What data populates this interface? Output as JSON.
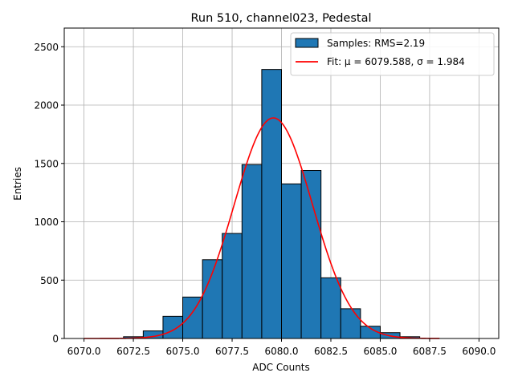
{
  "chart_data": {
    "type": "bar",
    "title": "Run 510, channel023, Pedestal",
    "xlabel": "ADC Counts",
    "ylabel": "Entries",
    "xlim": [
      6069,
      6091
    ],
    "ylim": [
      0,
      2660
    ],
    "grid": true,
    "legend_position": "top-right",
    "xticks": [
      {
        "value": 6070.0,
        "label": "6070.0"
      },
      {
        "value": 6072.5,
        "label": "6072.5"
      },
      {
        "value": 6075.0,
        "label": "6075.0"
      },
      {
        "value": 6077.5,
        "label": "6077.5"
      },
      {
        "value": 6080.0,
        "label": "6080.0"
      },
      {
        "value": 6082.5,
        "label": "6082.5"
      },
      {
        "value": 6085.0,
        "label": "6085.0"
      },
      {
        "value": 6087.5,
        "label": "6087.5"
      },
      {
        "value": 6090.0,
        "label": "6090.0"
      }
    ],
    "yticks": [
      {
        "value": 0,
        "label": "0"
      },
      {
        "value": 500,
        "label": "500"
      },
      {
        "value": 1000,
        "label": "1000"
      },
      {
        "value": 1500,
        "label": "1500"
      },
      {
        "value": 2000,
        "label": "2000"
      },
      {
        "value": 2500,
        "label": "2500"
      }
    ],
    "histogram": {
      "name": "Samples: RMS=2.19",
      "color": "#1f77b4",
      "edge_color": "#000000",
      "bin_edges": [
        6070,
        6071,
        6072,
        6073,
        6074,
        6075,
        6076,
        6077,
        6078,
        6079,
        6080,
        6081,
        6082,
        6083,
        6084,
        6085,
        6086,
        6087,
        6088,
        6089,
        6090
      ],
      "counts": [
        0,
        0,
        15,
        65,
        190,
        355,
        675,
        900,
        1490,
        2305,
        1325,
        1440,
        520,
        255,
        105,
        50,
        15,
        0,
        0,
        0
      ]
    },
    "fit": {
      "name": "Fit: μ = 6079.588, σ = 1.984",
      "color": "#ff0000",
      "mu": 6079.588,
      "sigma": 1.984,
      "amplitude": 1890,
      "x_range": [
        6070,
        6088
      ]
    }
  }
}
